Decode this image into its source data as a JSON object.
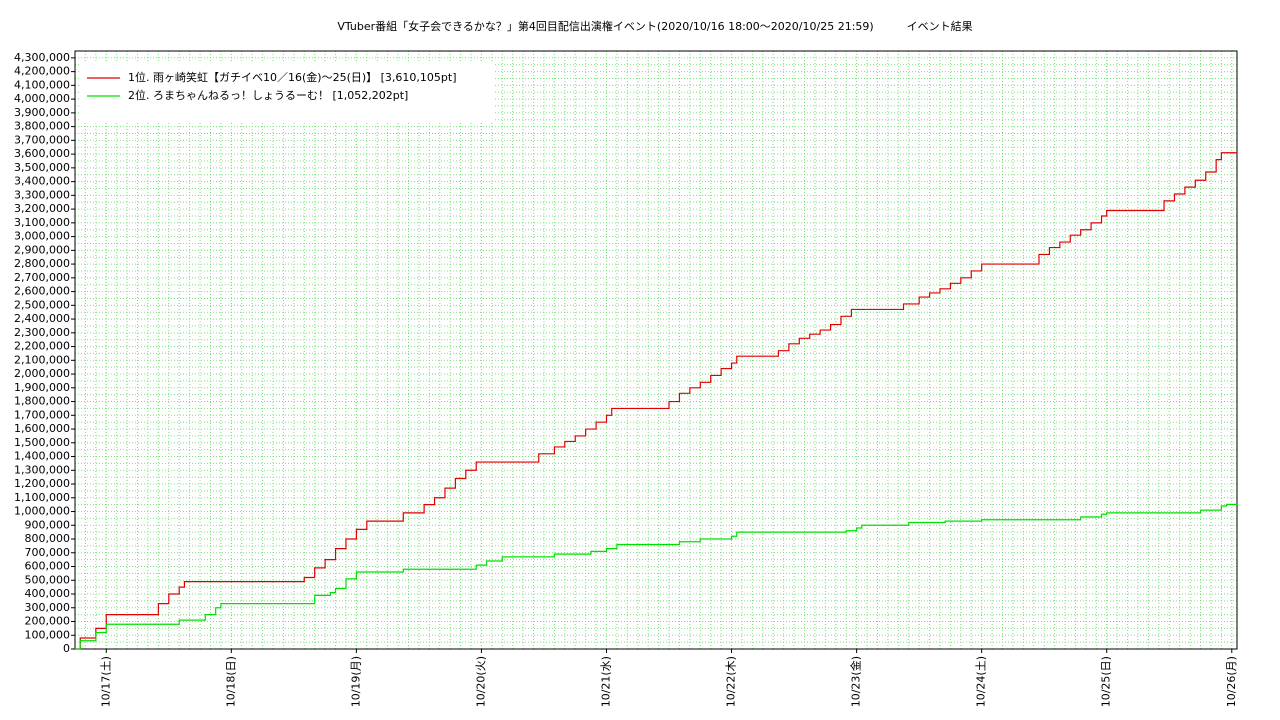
{
  "chart_data": {
    "type": "line",
    "step": true,
    "title": "VTuber番組「女子会できるかな？」第4回目配信出演権イベント(2020/10/16 18:00〜2020/10/25 21:59)　　　イベント結果",
    "xlim": [
      "2020-10-16 18:00",
      "2020-10-26 01:00"
    ],
    "xticks": [
      {
        "value": "2020-10-17 00:00",
        "label": "10/17(土)"
      },
      {
        "value": "2020-10-18 00:00",
        "label": "10/18(日)"
      },
      {
        "value": "2020-10-19 00:00",
        "label": "10/19(月)"
      },
      {
        "value": "2020-10-20 00:00",
        "label": "10/20(火)"
      },
      {
        "value": "2020-10-21 00:00",
        "label": "10/21(水)"
      },
      {
        "value": "2020-10-22 00:00",
        "label": "10/22(木)"
      },
      {
        "value": "2020-10-23 00:00",
        "label": "10/23(金)"
      },
      {
        "value": "2020-10-24 00:00",
        "label": "10/24(土)"
      },
      {
        "value": "2020-10-25 00:00",
        "label": "10/25(日)"
      },
      {
        "value": "2020-10-26 00:00",
        "label": "10/26(月)"
      }
    ],
    "ylim": [
      0,
      4350000
    ],
    "yticks": [
      0,
      {
        "value": 100000,
        "label": "100,000"
      },
      {
        "value": 200000,
        "label": "200,000"
      },
      {
        "value": 300000,
        "label": "300,000"
      },
      {
        "value": 400000,
        "label": "400,000"
      },
      {
        "value": 500000,
        "label": "500,000"
      },
      {
        "value": 600000,
        "label": "600,000"
      },
      {
        "value": 700000,
        "label": "700,000"
      },
      {
        "value": 800000,
        "label": "800,000"
      },
      {
        "value": 900000,
        "label": "900,000"
      },
      {
        "value": 1000000,
        "label": "1,000,000"
      },
      {
        "value": 1100000,
        "label": "1,100,000"
      },
      {
        "value": 1200000,
        "label": "1,200,000"
      },
      {
        "value": 1300000,
        "label": "1,300,000"
      },
      {
        "value": 1400000,
        "label": "1,400,000"
      },
      {
        "value": 1500000,
        "label": "1,500,000"
      },
      {
        "value": 1600000,
        "label": "1,600,000"
      },
      {
        "value": 1700000,
        "label": "1,700,000"
      },
      {
        "value": 1800000,
        "label": "1,800,000"
      },
      {
        "value": 1900000,
        "label": "1,900,000"
      },
      {
        "value": 2000000,
        "label": "2,000,000"
      },
      {
        "value": 2100000,
        "label": "2,100,000"
      },
      {
        "value": 2200000,
        "label": "2,200,000"
      },
      {
        "value": 2300000,
        "label": "2,300,000"
      },
      {
        "value": 2400000,
        "label": "2,400,000"
      },
      {
        "value": 2500000,
        "label": "2,500,000"
      },
      {
        "value": 2600000,
        "label": "2,600,000"
      },
      {
        "value": 2700000,
        "label": "2,700,000"
      },
      {
        "value": 2800000,
        "label": "2,800,000"
      },
      {
        "value": 2900000,
        "label": "2,900,000"
      },
      {
        "value": 3000000,
        "label": "3,000,000"
      },
      {
        "value": 3100000,
        "label": "3,100,000"
      },
      {
        "value": 3200000,
        "label": "3,200,000"
      },
      {
        "value": 3300000,
        "label": "3,300,000"
      },
      {
        "value": 3400000,
        "label": "3,400,000"
      },
      {
        "value": 3500000,
        "label": "3,500,000"
      },
      {
        "value": 3600000,
        "label": "3,600,000"
      },
      {
        "value": 3700000,
        "label": "3,700,000"
      },
      {
        "value": 3800000,
        "label": "3,800,000"
      },
      {
        "value": 3900000,
        "label": "3,900,000"
      },
      {
        "value": 4000000,
        "label": "4,000,000"
      },
      {
        "value": 4100000,
        "label": "4,100,000"
      },
      {
        "value": 4200000,
        "label": "4,200,000"
      },
      {
        "value": 4300000,
        "label": "4,300,000"
      }
    ],
    "grid": true,
    "legend": "upper left",
    "series": [
      {
        "name": "1位. 雨ヶ崎笑虹【ガチイベ10／16(金)〜25(日)】 [3,610,105pt]",
        "color": "#e00000",
        "x": [
          "2020-10-16 18:00",
          "2020-10-16 19:00",
          "2020-10-16 22:00",
          "2020-10-17 00:00",
          "2020-10-17 10:00",
          "2020-10-17 12:00",
          "2020-10-17 14:00",
          "2020-10-17 15:00",
          "2020-10-18 14:00",
          "2020-10-18 16:00",
          "2020-10-18 18:00",
          "2020-10-18 20:00",
          "2020-10-18 22:00",
          "2020-10-19 00:00",
          "2020-10-19 02:00",
          "2020-10-19 09:00",
          "2020-10-19 13:00",
          "2020-10-19 15:00",
          "2020-10-19 17:00",
          "2020-10-19 19:00",
          "2020-10-19 21:00",
          "2020-10-19 23:00",
          "2020-10-20 11:00",
          "2020-10-20 14:00",
          "2020-10-20 16:00",
          "2020-10-20 18:00",
          "2020-10-20 20:00",
          "2020-10-20 22:00",
          "2020-10-21 00:00",
          "2020-10-21 01:00",
          "2020-10-21 12:00",
          "2020-10-21 14:00",
          "2020-10-21 16:00",
          "2020-10-21 18:00",
          "2020-10-21 20:00",
          "2020-10-21 22:00",
          "2020-10-22 00:00",
          "2020-10-22 01:00",
          "2020-10-22 09:00",
          "2020-10-22 11:00",
          "2020-10-22 13:00",
          "2020-10-22 15:00",
          "2020-10-22 17:00",
          "2020-10-22 19:00",
          "2020-10-22 21:00",
          "2020-10-22 23:00",
          "2020-10-23 09:00",
          "2020-10-23 12:00",
          "2020-10-23 14:00",
          "2020-10-23 16:00",
          "2020-10-23 18:00",
          "2020-10-23 20:00",
          "2020-10-23 22:00",
          "2020-10-24 00:00",
          "2020-10-24 11:00",
          "2020-10-24 13:00",
          "2020-10-24 15:00",
          "2020-10-24 17:00",
          "2020-10-24 19:00",
          "2020-10-24 21:00",
          "2020-10-24 23:00",
          "2020-10-25 00:00",
          "2020-10-25 11:00",
          "2020-10-25 13:00",
          "2020-10-25 15:00",
          "2020-10-25 17:00",
          "2020-10-25 19:00",
          "2020-10-25 21:00",
          "2020-10-25 22:00",
          "2020-10-26 01:00"
        ],
        "values": [
          0,
          80000,
          150000,
          250000,
          330000,
          400000,
          450000,
          490000,
          520000,
          590000,
          650000,
          730000,
          800000,
          870000,
          930000,
          990000,
          1050000,
          1100000,
          1170000,
          1240000,
          1300000,
          1360000,
          1420000,
          1470000,
          1510000,
          1550000,
          1600000,
          1650000,
          1700000,
          1750000,
          1800000,
          1860000,
          1900000,
          1940000,
          1990000,
          2040000,
          2080000,
          2130000,
          2170000,
          2220000,
          2260000,
          2290000,
          2320000,
          2360000,
          2420000,
          2470000,
          2510000,
          2560000,
          2590000,
          2620000,
          2660000,
          2700000,
          2750000,
          2800000,
          2870000,
          2920000,
          2960000,
          3010000,
          3050000,
          3100000,
          3150000,
          3190000,
          3260000,
          3310000,
          3360000,
          3410000,
          3470000,
          3560000,
          3610105,
          3610105
        ]
      },
      {
        "name": "2位. ろまちゃんねるっ！しょうるーむ！ [1,052,202pt]",
        "color": "#00e000",
        "x": [
          "2020-10-16 18:00",
          "2020-10-16 19:00",
          "2020-10-16 22:00",
          "2020-10-17 00:00",
          "2020-10-17 14:00",
          "2020-10-17 19:00",
          "2020-10-17 21:00",
          "2020-10-17 22:00",
          "2020-10-18 16:00",
          "2020-10-18 19:00",
          "2020-10-18 20:00",
          "2020-10-18 22:00",
          "2020-10-19 00:00",
          "2020-10-19 09:00",
          "2020-10-19 23:00",
          "2020-10-20 01:00",
          "2020-10-20 04:00",
          "2020-10-20 14:00",
          "2020-10-20 21:00",
          "2020-10-21 00:00",
          "2020-10-21 02:00",
          "2020-10-21 14:00",
          "2020-10-21 18:00",
          "2020-10-22 00:00",
          "2020-10-22 01:00",
          "2020-10-22 22:00",
          "2020-10-23 00:00",
          "2020-10-23 01:00",
          "2020-10-23 10:00",
          "2020-10-23 17:00",
          "2020-10-24 00:00",
          "2020-10-24 19:00",
          "2020-10-24 23:00",
          "2020-10-25 00:00",
          "2020-10-25 18:00",
          "2020-10-25 22:00",
          "2020-10-25 23:00",
          "2020-10-26 01:00"
        ],
        "values": [
          0,
          60000,
          120000,
          180000,
          210000,
          250000,
          300000,
          330000,
          390000,
          410000,
          440000,
          510000,
          560000,
          580000,
          610000,
          640000,
          670000,
          690000,
          710000,
          730000,
          760000,
          780000,
          800000,
          820000,
          850000,
          860000,
          880000,
          900000,
          920000,
          930000,
          940000,
          960000,
          980000,
          990000,
          1010000,
          1040000,
          1052202,
          1052202
        ]
      }
    ]
  }
}
